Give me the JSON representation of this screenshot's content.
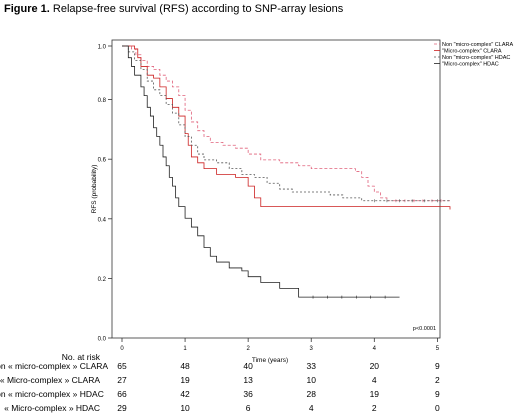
{
  "figure": {
    "label": "Figure 1.",
    "caption": "Relapse-free survival (RFS) according to SNP-array lesions"
  },
  "chart_data": {
    "type": "line",
    "step": true,
    "xlabel": "Time (years)",
    "ylabel": "RFS (probability)",
    "xlim": [
      0,
      5.2
    ],
    "ylim": [
      0,
      1.0
    ],
    "xticks": [
      0,
      1,
      2,
      3,
      4,
      5
    ],
    "yticks": [
      0.0,
      0.2,
      0.4,
      0.6,
      0.8,
      1.0
    ],
    "ytick_labels": [
      "0.0",
      "0.2",
      "0.4",
      "0.6",
      "0.8",
      "1.0"
    ],
    "grid": false,
    "legend_position": "top-right",
    "annotation": "p<0.0001",
    "series": [
      {
        "name": "Non \"micro-complex\" CLARA",
        "color": "#e0607a",
        "dash": "3,2",
        "points": [
          [
            0,
            1.0
          ],
          [
            0.15,
            0.99
          ],
          [
            0.22,
            0.97
          ],
          [
            0.3,
            0.95
          ],
          [
            0.4,
            0.93
          ],
          [
            0.5,
            0.92
          ],
          [
            0.6,
            0.9
          ],
          [
            0.7,
            0.88
          ],
          [
            0.8,
            0.86
          ],
          [
            0.9,
            0.83
          ],
          [
            1.0,
            0.78
          ],
          [
            1.1,
            0.74
          ],
          [
            1.2,
            0.71
          ],
          [
            1.3,
            0.69
          ],
          [
            1.4,
            0.67
          ],
          [
            1.6,
            0.66
          ],
          [
            1.8,
            0.65
          ],
          [
            2.0,
            0.63
          ],
          [
            2.2,
            0.61
          ],
          [
            2.5,
            0.6
          ],
          [
            2.8,
            0.59
          ],
          [
            3.0,
            0.58
          ],
          [
            3.5,
            0.58
          ],
          [
            3.7,
            0.57
          ],
          [
            3.8,
            0.55
          ],
          [
            3.9,
            0.52
          ],
          [
            4.0,
            0.5
          ],
          [
            4.1,
            0.48
          ],
          [
            4.2,
            0.47
          ],
          [
            5.2,
            0.47
          ]
        ]
      },
      {
        "name": "\"Micro-complex\" CLARA",
        "color": "#cc2020",
        "dash": "",
        "points": [
          [
            0,
            1.0
          ],
          [
            0.2,
            0.99
          ],
          [
            0.25,
            0.96
          ],
          [
            0.3,
            0.93
          ],
          [
            0.4,
            0.9
          ],
          [
            0.5,
            0.89
          ],
          [
            0.6,
            0.86
          ],
          [
            0.7,
            0.82
          ],
          [
            0.8,
            0.79
          ],
          [
            0.9,
            0.76
          ],
          [
            1.0,
            0.7
          ],
          [
            1.05,
            0.66
          ],
          [
            1.1,
            0.62
          ],
          [
            1.2,
            0.6
          ],
          [
            1.3,
            0.58
          ],
          [
            1.5,
            0.56
          ],
          [
            1.8,
            0.55
          ],
          [
            2.0,
            0.52
          ],
          [
            2.1,
            0.48
          ],
          [
            2.2,
            0.45
          ],
          [
            5.0,
            0.45
          ],
          [
            5.2,
            0.44
          ]
        ]
      },
      {
        "name": "Non \"micro-complex\" HDAC",
        "color": "#555555",
        "dash": "2,2",
        "points": [
          [
            0,
            1.0
          ],
          [
            0.1,
            0.98
          ],
          [
            0.2,
            0.95
          ],
          [
            0.3,
            0.92
          ],
          [
            0.4,
            0.88
          ],
          [
            0.5,
            0.85
          ],
          [
            0.6,
            0.83
          ],
          [
            0.7,
            0.8
          ],
          [
            0.8,
            0.77
          ],
          [
            0.9,
            0.73
          ],
          [
            1.0,
            0.69
          ],
          [
            1.1,
            0.66
          ],
          [
            1.2,
            0.63
          ],
          [
            1.3,
            0.61
          ],
          [
            1.5,
            0.6
          ],
          [
            1.7,
            0.58
          ],
          [
            1.9,
            0.56
          ],
          [
            2.1,
            0.55
          ],
          [
            2.3,
            0.53
          ],
          [
            2.5,
            0.51
          ],
          [
            2.7,
            0.5
          ],
          [
            3.0,
            0.5
          ],
          [
            3.3,
            0.49
          ],
          [
            3.5,
            0.48
          ],
          [
            3.8,
            0.47
          ],
          [
            5.2,
            0.47
          ]
        ]
      },
      {
        "name": "\"Micro-complex\" HDAC",
        "color": "#222222",
        "dash": "",
        "points": [
          [
            0,
            1.0
          ],
          [
            0.1,
            0.96
          ],
          [
            0.15,
            0.93
          ],
          [
            0.2,
            0.9
          ],
          [
            0.3,
            0.86
          ],
          [
            0.35,
            0.83
          ],
          [
            0.4,
            0.79
          ],
          [
            0.45,
            0.76
          ],
          [
            0.5,
            0.72
          ],
          [
            0.55,
            0.69
          ],
          [
            0.6,
            0.66
          ],
          [
            0.65,
            0.62
          ],
          [
            0.7,
            0.59
          ],
          [
            0.75,
            0.55
          ],
          [
            0.8,
            0.52
          ],
          [
            0.85,
            0.48
          ],
          [
            0.9,
            0.45
          ],
          [
            1.0,
            0.41
          ],
          [
            1.1,
            0.38
          ],
          [
            1.2,
            0.35
          ],
          [
            1.3,
            0.31
          ],
          [
            1.4,
            0.28
          ],
          [
            1.5,
            0.26
          ],
          [
            1.7,
            0.24
          ],
          [
            1.9,
            0.23
          ],
          [
            2.0,
            0.21
          ],
          [
            2.2,
            0.19
          ],
          [
            2.5,
            0.17
          ],
          [
            2.8,
            0.14
          ],
          [
            4.4,
            0.14
          ]
        ]
      }
    ]
  },
  "risk_table": {
    "title": "No. at risk",
    "rows": [
      {
        "label": "Non « micro-complex » CLARA",
        "values": [
          "65",
          "48",
          "40",
          "33",
          "20",
          "9"
        ]
      },
      {
        "label": "« Micro-complex » CLARA",
        "values": [
          "27",
          "19",
          "13",
          "10",
          "4",
          "2"
        ]
      },
      {
        "label": "Non « micro-complex » HDAC",
        "values": [
          "66",
          "42",
          "36",
          "28",
          "19",
          "9"
        ]
      },
      {
        "label": "« Micro-complex » HDAC",
        "values": [
          "29",
          "10",
          "6",
          "4",
          "2",
          "0"
        ]
      }
    ]
  }
}
